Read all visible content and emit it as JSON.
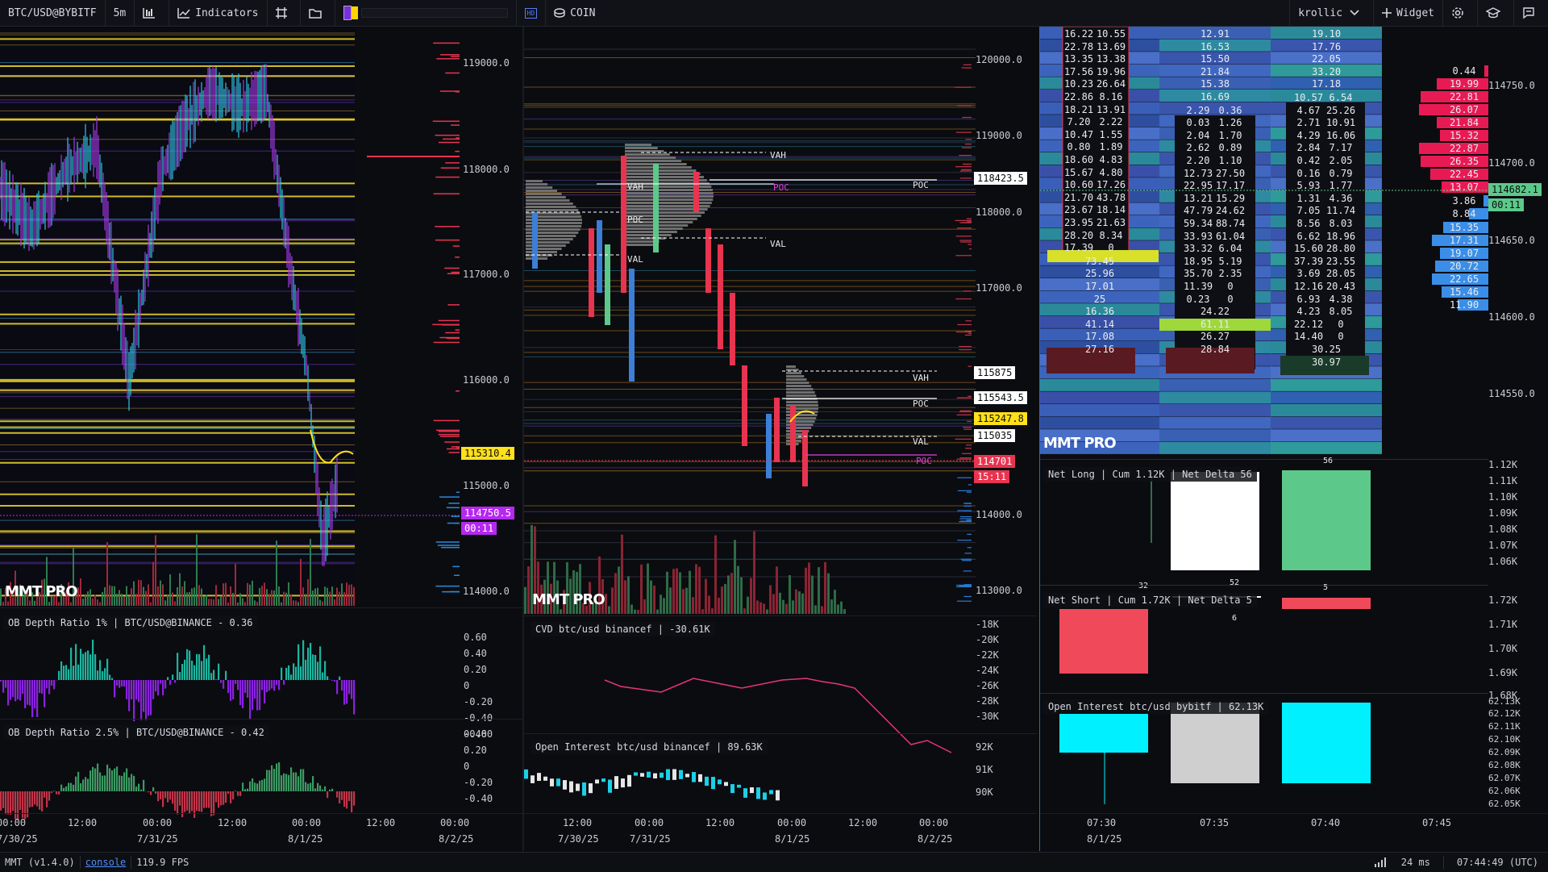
{
  "toolbar": {
    "symbol": "BTC/USD@BYBITF",
    "interval": "5m",
    "indicators_label": "Indicators",
    "mode_label": "COIN",
    "user": "krollic",
    "widget_label": "Widget",
    "hd_label": "HD",
    "swatch_colors": [
      "#7b2ee0",
      "#ffd400"
    ]
  },
  "status": {
    "version": "MMT (v1.4.0)",
    "console_label": "console",
    "fps": "119.9 FPS",
    "latency": "24 ms",
    "clock": "07:44:49 (UTC)"
  },
  "panel1": {
    "watermark": "MMT PRO",
    "price_ticks": [
      "119000.0",
      "118000.0",
      "117000.0",
      "116000.0",
      "115000.0",
      "114000.0"
    ],
    "tag_yellow": "115310.4",
    "tag_purple": "114750.5",
    "tag_purple_timer": "00:11",
    "ob1": {
      "legend": "OB Depth Ratio 1% | BTC/USD@BINANCE - 0.36",
      "ticks": [
        "0.60",
        "0.40",
        "0.20",
        "0",
        "-0.20",
        "-0.40",
        "-0.60"
      ]
    },
    "ob2": {
      "legend": "OB Depth Ratio 2.5% | BTC/USD@BINANCE - 0.42",
      "ticks": [
        "0.40",
        "0.20",
        "0",
        "-0.20",
        "-0.40"
      ]
    },
    "time_ticks": [
      "00:00",
      "12:00",
      "00:00",
      "12:00",
      "00:00",
      "12:00",
      "00:00"
    ],
    "date_ticks": [
      "7/30/25",
      "7/31/25",
      "8/1/25",
      "8/2/25"
    ]
  },
  "panel2": {
    "watermark": "MMT PRO",
    "price_ticks": [
      "120000.0",
      "119000.0",
      "118000.0",
      "117000.0",
      "114000.0",
      "113000.0"
    ],
    "tags": [
      {
        "text": "118423.5",
        "bg": "#ffffff",
        "fg": "#000000"
      },
      {
        "text": "115875",
        "bg": "#ffffff",
        "fg": "#000000"
      },
      {
        "text": "115543.5",
        "bg": "#ffffff",
        "fg": "#000000"
      },
      {
        "text": "115247.8",
        "bg": "#ffe01a",
        "fg": "#000000"
      },
      {
        "text": "115035",
        "bg": "#ffffff",
        "fg": "#000000"
      },
      {
        "text": "114701",
        "bg": "#e8344f",
        "fg": "#ffffff"
      },
      {
        "text": "15:11",
        "bg": "#e8344f",
        "fg": "#ffffff"
      }
    ],
    "profile_labels": {
      "vah": "VAH",
      "poc": "POC",
      "val": "VAL"
    },
    "cvd": {
      "legend": "CVD btc/usd binancef | -30.61K",
      "ticks": [
        "-18K",
        "-20K",
        "-22K",
        "-24K",
        "-26K",
        "-28K",
        "-30K"
      ]
    },
    "oi": {
      "legend": "Open Interest btc/usd binancef | 89.63K",
      "ticks": [
        "92K",
        "91K",
        "90K"
      ]
    },
    "time_ticks": [
      "12:00",
      "00:00",
      "12:00",
      "00:00",
      "12:00",
      "00:00"
    ],
    "date_ticks": [
      "7/30/25",
      "7/31/25",
      "8/1/25",
      "8/2/25"
    ]
  },
  "panel3": {
    "watermark": "MMT PRO",
    "price_ticks": [
      "114750.0",
      "114700.0",
      "114650.0",
      "114600.0",
      "114550.0"
    ],
    "price_tag": "114682.1",
    "price_timer": "00:11",
    "col1_top": [
      [
        "16.22",
        "10.55"
      ],
      [
        "22.78",
        "13.69"
      ],
      [
        "13.35",
        "13.38"
      ],
      [
        "17.56",
        "19.96"
      ],
      [
        "10.23",
        "26.64"
      ],
      [
        "22.86",
        "8.16"
      ],
      [
        "18.21",
        "13.91"
      ],
      [
        "7.20",
        "2.22"
      ],
      [
        "10.47",
        "1.55"
      ],
      [
        "0.80",
        "1.89"
      ],
      [
        "18.60",
        "4.83"
      ],
      [
        "15.67",
        "4.80"
      ],
      [
        "10.60",
        "17.26"
      ],
      [
        "21.70",
        "43.78"
      ],
      [
        "23.67",
        "18.14"
      ],
      [
        "23.95",
        "21.63"
      ],
      [
        "28.20",
        "8.34"
      ],
      [
        "17.39",
        "0"
      ]
    ],
    "col1_single": [
      "73.45",
      "25.96",
      "17.01",
      "25",
      "16.36",
      "41.14",
      "17.08",
      "27.16"
    ],
    "col2_single_top": [
      "12.91",
      "16.53",
      "15.50",
      "21.84",
      "15.38",
      "16.69"
    ],
    "col2_pairs": [
      [
        "2.29",
        "0.36"
      ],
      [
        "0.03",
        "1.26"
      ],
      [
        "2.04",
        "1.70"
      ],
      [
        "2.62",
        "0.89"
      ],
      [
        "2.20",
        "1.10"
      ],
      [
        "12.73",
        "27.50"
      ],
      [
        "22.95",
        "17.17"
      ],
      [
        "13.21",
        "15.29"
      ],
      [
        "47.79",
        "24.62"
      ],
      [
        "59.34",
        "88.74"
      ],
      [
        "33.93",
        "61.04"
      ],
      [
        "33.32",
        "6.04"
      ],
      [
        "18.95",
        "5.19"
      ],
      [
        "35.70",
        "2.35"
      ],
      [
        "11.39",
        "0"
      ],
      [
        "0.23",
        "0"
      ]
    ],
    "col2_single_bottom": [
      "24.22",
      "61.11",
      "26.27",
      "28.84"
    ],
    "col3_single_top": [
      "19.10",
      "17.76",
      "22.05",
      "33.20",
      "17.18"
    ],
    "col3_pairs": [
      [
        "10.57",
        "6.54"
      ],
      [
        "4.67",
        "25.26"
      ],
      [
        "2.71",
        "10.91"
      ],
      [
        "4.29",
        "16.06"
      ],
      [
        "2.84",
        "7.17"
      ],
      [
        "0.42",
        "2.05"
      ],
      [
        "0.16",
        "0.79"
      ],
      [
        "5.93",
        "1.77"
      ],
      [
        "1.31",
        "4.36"
      ],
      [
        "7.05",
        "11.74"
      ],
      [
        "8.56",
        "8.03"
      ],
      [
        "6.62",
        "18.96"
      ],
      [
        "15.60",
        "28.80"
      ],
      [
        "37.39",
        "23.55"
      ],
      [
        "3.69",
        "28.05"
      ],
      [
        "12.16",
        "20.43"
      ],
      [
        "6.93",
        "4.38"
      ],
      [
        "4.23",
        "8.05"
      ],
      [
        "22.12",
        "0"
      ],
      [
        "14.40",
        "0"
      ]
    ],
    "col3_single_bottom": [
      "30.25",
      "30.97"
    ],
    "dom_bids": [
      "0.44",
      "19.99",
      "22.81",
      "26.07",
      "21.84",
      "15.32",
      "22.87",
      "26.35",
      "22.45",
      "13.07"
    ],
    "dom_asks": [
      "3.86",
      "8.84",
      "15.35",
      "17.31",
      "19.07",
      "20.72",
      "22.65",
      "15.46",
      "11.90"
    ],
    "net_long": {
      "legend": "Net Long | Cum 1.12K | Net Delta 56",
      "ticks": [
        "1.12K",
        "1.11K",
        "1.10K",
        "1.09K",
        "1.08K",
        "1.07K",
        "1.06K"
      ],
      "labels": [
        "56",
        "32",
        "52",
        "5"
      ]
    },
    "net_short": {
      "legend": "Net Short | Cum 1.72K | Net Delta 5",
      "ticks": [
        "1.72K",
        "1.71K",
        "1.70K",
        "1.69K",
        "1.68K"
      ],
      "labels": [
        "6"
      ]
    },
    "oi": {
      "legend": "Open Interest btc/usd bybitf | 62.13K",
      "ticks": [
        "62.13K",
        "62.12K",
        "62.11K",
        "62.10K",
        "62.09K",
        "62.08K",
        "62.07K",
        "62.06K",
        "62.05K"
      ]
    },
    "time_ticks": [
      "07:30",
      "07:35",
      "07:40",
      "07:45"
    ],
    "date_ticks": [
      "8/1/25"
    ]
  }
}
